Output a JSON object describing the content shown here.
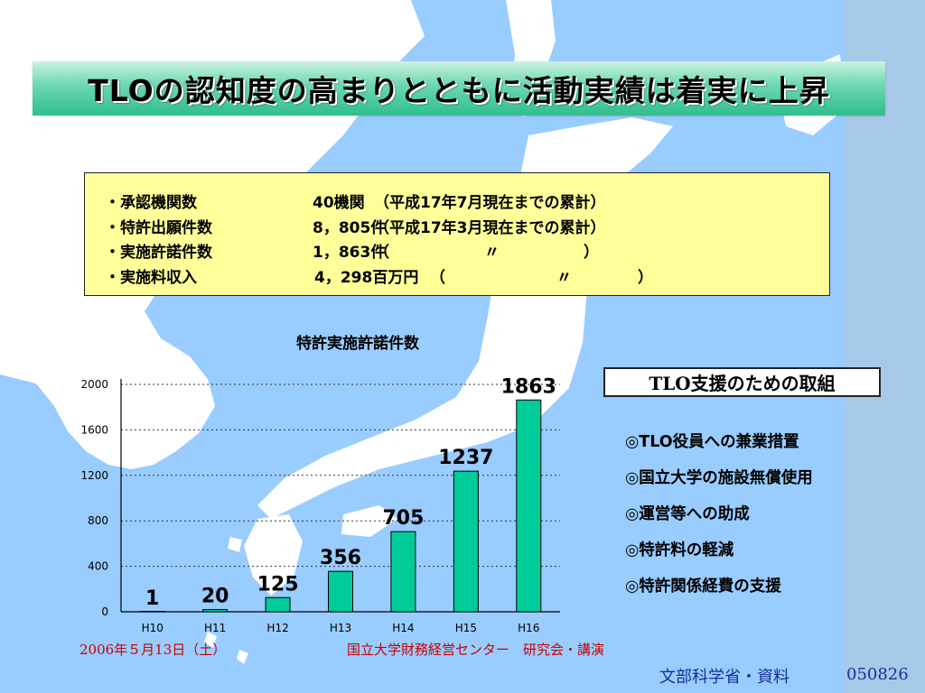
{
  "slide": {
    "title": "TLOの認知度の高まりとともに活動実績は着実に上昇",
    "colors": {
      "title_bar": "#2fbf8c",
      "stats_box": "#ffff99",
      "bar_fill": "#00cc99",
      "ocean": "#99ccff",
      "footer_red": "#cc0000",
      "footer_blue": "#1a2f9a"
    }
  },
  "stats": [
    {
      "label": "・承認機関数",
      "value": "40機関",
      "note_a": "（平成17年7月現在までの累計）",
      "ditto": "",
      "note_b": ""
    },
    {
      "label": "・特許出願件数",
      "value": "8，805件",
      "note_a": "（平成17年3月現在までの累計）",
      "ditto": "",
      "note_b": ""
    },
    {
      "label": "・実施許諾件数",
      "value": "1，863件",
      "note_a": "（",
      "ditto": "〃",
      "note_b": "）"
    },
    {
      "label": "・実施料収入",
      "value": "4，298百万円",
      "note_a": "（",
      "ditto": "〃",
      "note_b": "）"
    }
  ],
  "chart_data": {
    "type": "bar",
    "title": "特許実施許諾件数",
    "categories": [
      "H10",
      "H11",
      "H12",
      "H13",
      "H14",
      "H15",
      "H16"
    ],
    "values": [
      1,
      20,
      125,
      356,
      705,
      1237,
      1863
    ],
    "data_labels": [
      "1",
      "20",
      "125",
      "356",
      "705",
      "1237",
      "1863"
    ],
    "yticks": [
      0,
      400,
      800,
      1200,
      1600,
      2000
    ],
    "ylim": [
      0,
      2000
    ],
    "grid": true,
    "xlabel": "",
    "ylabel": ""
  },
  "support": {
    "heading": "TLO支援のための取組",
    "items": [
      "◎TLO役員への兼業措置",
      "◎国立大学の施設無償使用",
      "◎運営等への助成",
      "◎特許料の軽減",
      "◎特許関係経費の支援"
    ]
  },
  "footer": {
    "date": "2006年５月13日（土）",
    "center": "国立大学財務経営センター　研究会・講演",
    "ministry": "文部科学省・資料",
    "code": "050826"
  }
}
